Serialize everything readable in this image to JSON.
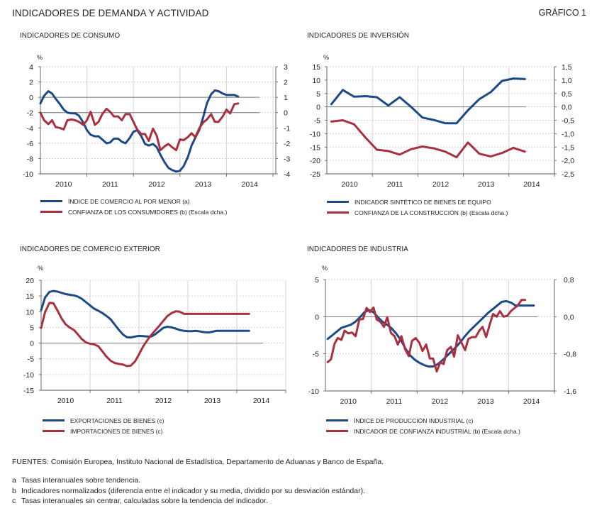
{
  "header": {
    "title": "INDICADORES DE DEMANDA Y ACTIVIDAD",
    "figure_label": "GRÁFICO 1"
  },
  "colors": {
    "blue": "#1b4a86",
    "red": "#a8303f",
    "grid": "#c8c8c8",
    "axis": "#555555"
  },
  "chart_data": [
    {
      "id": "consumo",
      "type": "line",
      "title": "INDICADORES DE CONSUMO",
      "unit_label": "%",
      "x_range": [
        2010.0,
        2015.0
      ],
      "categories": [
        "2010",
        "2011",
        "2012",
        "2013",
        "2014"
      ],
      "y_left": {
        "range": [
          -10,
          4
        ],
        "ticks": [
          "4",
          "2",
          "0",
          "-2",
          "-4",
          "-6",
          "-8",
          "-10"
        ],
        "tick_values": [
          4,
          2,
          0,
          -2,
          -4,
          -6,
          -8,
          -10
        ]
      },
      "y_right": {
        "range": [
          -4,
          3
        ],
        "ticks": [
          "3",
          "2",
          "1",
          "0",
          "-1",
          "-2",
          "-3",
          "-4"
        ],
        "tick_values": [
          3,
          2,
          1,
          0,
          -1,
          -2,
          -3,
          -4
        ]
      },
      "reference_line_left": 0,
      "reference_line_right": 0,
      "grid": true,
      "series": [
        {
          "name": "ÍNDICE DE COMERCIO AL POR MENOR (a)",
          "color": "blue",
          "axis": "left",
          "x": [
            2010.0,
            2010.08,
            2010.17,
            2010.25,
            2010.33,
            2010.42,
            2010.5,
            2010.58,
            2010.67,
            2010.75,
            2010.83,
            2010.92,
            2011.0,
            2011.08,
            2011.17,
            2011.25,
            2011.33,
            2011.42,
            2011.5,
            2011.58,
            2011.67,
            2011.75,
            2011.83,
            2011.92,
            2012.0,
            2012.08,
            2012.17,
            2012.25,
            2012.33,
            2012.42,
            2012.5,
            2012.58,
            2012.67,
            2012.75,
            2012.83,
            2012.92,
            2013.0,
            2013.08,
            2013.17,
            2013.25,
            2013.33,
            2013.42,
            2013.5,
            2013.58,
            2013.67,
            2013.75,
            2013.83,
            2013.92,
            2014.0,
            2014.08,
            2014.17,
            2014.25
          ],
          "y": [
            -0.8,
            0.2,
            0.8,
            0.5,
            -0.2,
            -0.9,
            -1.6,
            -2.0,
            -2.1,
            -2.1,
            -2.4,
            -3.3,
            -4.3,
            -4.9,
            -5.1,
            -5.1,
            -5.5,
            -6.0,
            -5.9,
            -5.4,
            -5.4,
            -5.8,
            -6.0,
            -5.3,
            -4.5,
            -4.3,
            -5.1,
            -6.1,
            -6.3,
            -6.1,
            -6.5,
            -7.5,
            -8.5,
            -9.2,
            -9.5,
            -9.7,
            -9.6,
            -9.0,
            -7.8,
            -6.3,
            -5.3,
            -4.2,
            -2.6,
            -0.8,
            0.4,
            0.9,
            0.8,
            0.5,
            0.3,
            0.3,
            0.3,
            0.1
          ]
        },
        {
          "name": "CONFIANZA DE LOS CONSUMIDORES (b) (Escala dcha.)",
          "color": "red",
          "axis": "right",
          "x": [
            2010.0,
            2010.08,
            2010.17,
            2010.25,
            2010.33,
            2010.42,
            2010.5,
            2010.58,
            2010.67,
            2010.75,
            2010.83,
            2010.92,
            2011.0,
            2011.08,
            2011.17,
            2011.25,
            2011.33,
            2011.42,
            2011.5,
            2011.58,
            2011.67,
            2011.75,
            2011.83,
            2011.92,
            2012.0,
            2012.08,
            2012.17,
            2012.25,
            2012.33,
            2012.42,
            2012.5,
            2012.58,
            2012.67,
            2012.75,
            2012.83,
            2012.92,
            2013.0,
            2013.08,
            2013.17,
            2013.25,
            2013.33,
            2013.42,
            2013.5,
            2013.58,
            2013.67,
            2013.75,
            2013.83,
            2013.92,
            2014.0,
            2014.08,
            2014.17,
            2014.25
          ],
          "y": [
            0.0,
            -0.5,
            -0.75,
            -0.5,
            -0.95,
            -1.0,
            -1.1,
            -0.5,
            -0.45,
            -0.5,
            -0.6,
            -0.8,
            -0.5,
            0.05,
            -0.8,
            -0.6,
            -0.1,
            0.25,
            0.05,
            -0.25,
            -0.25,
            -0.5,
            -0.1,
            -0.1,
            -0.6,
            -1.1,
            -1.4,
            -1.4,
            -1.85,
            -1.05,
            -1.5,
            -2.45,
            -2.2,
            -2.05,
            -2.25,
            -2.45,
            -1.75,
            -1.8,
            -1.6,
            -1.35,
            -1.6,
            -1.0,
            -0.65,
            -0.45,
            -0.1,
            -0.6,
            -0.6,
            -0.25,
            0.2,
            -0.05,
            0.55,
            0.6
          ]
        }
      ]
    },
    {
      "id": "inversion",
      "type": "line",
      "title": "INDICADORES DE INVERSIÓN",
      "unit_label": "%",
      "x_range": [
        2010.0,
        2015.0
      ],
      "categories": [
        "2010",
        "2011",
        "2012",
        "2013",
        "2014"
      ],
      "y_left": {
        "range": [
          -25,
          15
        ],
        "ticks": [
          "15",
          "10",
          "5",
          "0",
          "-5",
          "-10",
          "-15",
          "-20",
          "-25"
        ],
        "tick_values": [
          15,
          10,
          5,
          0,
          -5,
          -10,
          -15,
          -20,
          -25
        ]
      },
      "y_right": {
        "range": [
          -2.5,
          1.5
        ],
        "ticks": [
          "1,5",
          "1,0",
          "0,5",
          "0,0",
          "-0,5",
          "-1,0",
          "-1,5",
          "-2,0",
          "-2,5"
        ],
        "tick_values": [
          1.5,
          1.0,
          0.5,
          0.0,
          -0.5,
          -1.0,
          -1.5,
          -2.0,
          -2.5
        ]
      },
      "reference_line_left": 0,
      "grid": true,
      "series": [
        {
          "name": "INDICADOR SINTÉTICO DE BIENES DE EQUIPO",
          "color": "blue",
          "axis": "left",
          "x": [
            2010.1,
            2010.35,
            2010.6,
            2010.85,
            2011.1,
            2011.35,
            2011.6,
            2011.85,
            2012.1,
            2012.35,
            2012.6,
            2012.85,
            2013.1,
            2013.35,
            2013.6,
            2013.85,
            2014.1,
            2014.35
          ],
          "y": [
            1.0,
            6.3,
            3.8,
            4.0,
            3.6,
            0.5,
            3.6,
            0.0,
            -4.0,
            -4.9,
            -6.1,
            -6.1,
            -1.3,
            2.9,
            5.5,
            9.7,
            10.6,
            10.4
          ]
        },
        {
          "name": "CONFIANZA DE LA CONSTRUCCIÓN (b) (Escala dcha.)",
          "color": "red",
          "axis": "right",
          "x": [
            2010.1,
            2010.35,
            2010.6,
            2010.85,
            2011.1,
            2011.35,
            2011.6,
            2011.85,
            2012.1,
            2012.35,
            2012.6,
            2012.85,
            2013.1,
            2013.35,
            2013.6,
            2013.85,
            2014.1,
            2014.35
          ],
          "y": [
            -0.55,
            -0.5,
            -0.65,
            -1.15,
            -1.6,
            -1.65,
            -1.78,
            -1.58,
            -1.48,
            -1.55,
            -1.67,
            -1.88,
            -1.33,
            -1.75,
            -1.85,
            -1.72,
            -1.53,
            -1.67
          ]
        }
      ]
    },
    {
      "id": "comercio-exterior",
      "type": "line",
      "title": "INDICADORES DE COMERCIO EXTERIOR",
      "unit_label": "%",
      "x_range": [
        2010.0,
        2015.0
      ],
      "categories": [
        "2010",
        "2011",
        "2012",
        "2013",
        "2014"
      ],
      "y_left": {
        "range": [
          -15,
          20
        ],
        "ticks": [
          "20",
          "15",
          "10",
          "5",
          "0",
          "-5",
          "-10",
          "-15"
        ],
        "tick_values": [
          20,
          15,
          10,
          5,
          0,
          -5,
          -10,
          -15
        ]
      },
      "reference_line_left": 0,
      "grid": true,
      "series": [
        {
          "name": "EXPORTACIONES DE BIENES (c)",
          "color": "blue",
          "axis": "left",
          "x": [
            2010.0,
            2010.08,
            2010.17,
            2010.25,
            2010.33,
            2010.42,
            2010.5,
            2010.58,
            2010.67,
            2010.75,
            2010.83,
            2010.92,
            2011.0,
            2011.08,
            2011.17,
            2011.25,
            2011.33,
            2011.42,
            2011.5,
            2011.58,
            2011.67,
            2011.75,
            2011.83,
            2011.92,
            2012.0,
            2012.08,
            2012.17,
            2012.25,
            2012.33,
            2012.42,
            2012.5,
            2012.58,
            2012.67,
            2012.75,
            2012.83,
            2012.92,
            2013.0,
            2013.08,
            2013.17,
            2013.25,
            2013.33,
            2013.42,
            2013.5,
            2013.58,
            2013.67,
            2013.75,
            2013.83,
            2013.92,
            2014.0,
            2014.08,
            2014.17,
            2014.25
          ],
          "y": [
            10.5,
            14.5,
            16.3,
            16.6,
            16.4,
            16.0,
            15.6,
            15.4,
            15.2,
            14.8,
            14.1,
            13.0,
            12.0,
            11.0,
            10.3,
            9.6,
            8.7,
            7.6,
            6.0,
            4.4,
            2.8,
            1.9,
            1.8,
            2.1,
            2.3,
            2.2,
            2.1,
            2.1,
            2.8,
            3.9,
            4.9,
            5.2,
            5.0,
            4.6,
            4.2,
            3.9,
            3.8,
            3.8,
            3.9,
            3.7,
            3.5,
            3.4,
            3.6,
            3.9,
            3.9,
            3.9,
            3.9,
            3.9,
            3.9,
            3.9,
            3.9,
            3.9
          ]
        },
        {
          "name": "IMPORTACIONES DE BIENES (c)",
          "color": "red",
          "axis": "left",
          "x": [
            2010.0,
            2010.08,
            2010.17,
            2010.25,
            2010.33,
            2010.42,
            2010.5,
            2010.58,
            2010.67,
            2010.75,
            2010.83,
            2010.92,
            2011.0,
            2011.08,
            2011.17,
            2011.25,
            2011.33,
            2011.42,
            2011.5,
            2011.58,
            2011.67,
            2011.75,
            2011.83,
            2011.92,
            2012.0,
            2012.08,
            2012.17,
            2012.25,
            2012.33,
            2012.42,
            2012.5,
            2012.58,
            2012.67,
            2012.75,
            2012.83,
            2012.92,
            2013.0,
            2013.08,
            2013.17,
            2013.25,
            2013.33,
            2013.42,
            2013.5,
            2013.58,
            2013.67,
            2013.75,
            2013.83,
            2013.92,
            2014.0,
            2014.08,
            2014.17,
            2014.25
          ],
          "y": [
            4.8,
            9.8,
            12.8,
            12.7,
            10.5,
            7.8,
            6.0,
            5.0,
            4.2,
            2.8,
            1.3,
            0.2,
            -0.2,
            -0.4,
            -1.0,
            -2.6,
            -4.2,
            -5.6,
            -6.3,
            -6.6,
            -6.8,
            -7.3,
            -7.2,
            -5.8,
            -3.6,
            -1.2,
            0.9,
            2.6,
            4.0,
            5.6,
            7.1,
            8.6,
            9.6,
            10.1,
            10.0,
            9.3,
            9.3,
            9.3,
            9.3,
            9.3,
            9.3,
            9.3,
            9.3,
            9.3,
            9.3,
            9.3,
            9.3,
            9.3,
            9.3,
            9.3,
            9.3,
            9.3
          ]
        }
      ]
    },
    {
      "id": "industria",
      "type": "line",
      "title": "INDICADORES DE INDUSTRIA",
      "unit_label": "%",
      "x_range": [
        2010.0,
        2015.0
      ],
      "categories": [
        "2010",
        "2011",
        "2012",
        "2013",
        "2014"
      ],
      "y_left": {
        "range": [
          -10,
          5
        ],
        "ticks": [
          "5",
          "0",
          "-5",
          "-10"
        ],
        "tick_values": [
          5,
          0,
          -5,
          -10
        ]
      },
      "y_right": {
        "range": [
          -1.6,
          0.8
        ],
        "ticks": [
          "0,8",
          "0,0",
          "-0,8",
          "-1,6"
        ],
        "tick_values": [
          0.8,
          0.0,
          -0.8,
          -1.6
        ]
      },
      "reference_line_left": 0,
      "grid": true,
      "series": [
        {
          "name": "ÍNDICE DE PRODUCCIÓN INDUSTRIAL (c)",
          "color": "blue",
          "axis": "left",
          "x": [
            2010.05,
            2010.15,
            2010.25,
            2010.35,
            2010.45,
            2010.55,
            2010.65,
            2010.75,
            2010.85,
            2010.95,
            2011.05,
            2011.15,
            2011.25,
            2011.35,
            2011.45,
            2011.55,
            2011.65,
            2011.75,
            2011.85,
            2011.95,
            2012.05,
            2012.15,
            2012.25,
            2012.35,
            2012.45,
            2012.55,
            2012.65,
            2012.75,
            2012.85,
            2012.95,
            2013.05,
            2013.15,
            2013.25,
            2013.35,
            2013.45,
            2013.55,
            2013.65,
            2013.75,
            2013.85,
            2013.95,
            2014.05,
            2014.15,
            2014.25,
            2014.35,
            2014.45,
            2014.55
          ],
          "y": [
            -3.0,
            -2.5,
            -2.0,
            -1.5,
            -1.3,
            -1.1,
            -0.7,
            -0.1,
            0.6,
            0.9,
            0.6,
            -0.1,
            -0.7,
            -1.1,
            -1.6,
            -2.3,
            -3.2,
            -4.3,
            -5.2,
            -5.8,
            -6.2,
            -6.5,
            -6.7,
            -6.7,
            -6.4,
            -5.9,
            -5.3,
            -4.7,
            -4.1,
            -3.4,
            -2.6,
            -1.9,
            -1.3,
            -0.7,
            -0.1,
            0.5,
            1.0,
            1.5,
            2.0,
            2.1,
            1.9,
            1.5,
            1.5,
            1.5,
            1.5,
            1.5
          ]
        },
        {
          "name": "INDICADOR DE CONFIANZA INDUSTRIAL (b) (Escala dcha.)",
          "color": "red",
          "axis": "right",
          "x": [
            2010.05,
            2010.12,
            2010.2,
            2010.27,
            2010.35,
            2010.42,
            2010.5,
            2010.58,
            2010.66,
            2010.74,
            2010.82,
            2010.9,
            2010.97,
            2011.05,
            2011.12,
            2011.2,
            2011.28,
            2011.35,
            2011.43,
            2011.51,
            2011.58,
            2011.66,
            2011.74,
            2011.82,
            2011.89,
            2011.97,
            2012.05,
            2012.12,
            2012.2,
            2012.28,
            2012.35,
            2012.43,
            2012.51,
            2012.58,
            2012.66,
            2012.74,
            2012.81,
            2012.89,
            2012.97,
            2013.05,
            2013.12,
            2013.2,
            2013.28,
            2013.36,
            2013.43,
            2013.51,
            2013.59,
            2013.66,
            2013.74,
            2013.81,
            2013.89,
            2013.97,
            2014.05,
            2014.12,
            2014.2,
            2014.28,
            2014.36
          ],
          "y": [
            -0.98,
            -0.92,
            -0.58,
            -0.46,
            -0.5,
            -0.3,
            -0.36,
            -0.34,
            -0.42,
            -0.06,
            -0.05,
            0.19,
            0.1,
            0.2,
            -0.06,
            -0.11,
            -0.22,
            -0.01,
            -0.35,
            -0.42,
            -0.6,
            -0.42,
            -0.7,
            -0.85,
            -0.52,
            -0.46,
            -0.56,
            -0.74,
            -0.6,
            -0.9,
            -0.9,
            -1.18,
            -0.98,
            -1.02,
            -0.72,
            -0.65,
            -0.86,
            -0.4,
            -0.56,
            -0.72,
            -0.48,
            -0.44,
            -0.44,
            -0.3,
            -0.22,
            -0.44,
            -0.16,
            0.06,
            0.0,
            0.12,
            0.0,
            0.02,
            0.12,
            0.18,
            0.24,
            0.36,
            0.36
          ]
        }
      ]
    }
  ],
  "footer": {
    "sources": "FUENTES: Comisión Europea, Instituto Nacional de Estadística, Departamento de Aduanas y Banco de España.",
    "notes": [
      {
        "key": "a",
        "text": "Tasas interanuales sobre tendencia."
      },
      {
        "key": "b",
        "text": "Indicadores normalizados (diferencia entre el indicador y su media, dividido por su desviación estándar)."
      },
      {
        "key": "c",
        "text": "Tasas interanuales sin centrar, calculadas sobre la tendencia del indicador."
      }
    ]
  }
}
